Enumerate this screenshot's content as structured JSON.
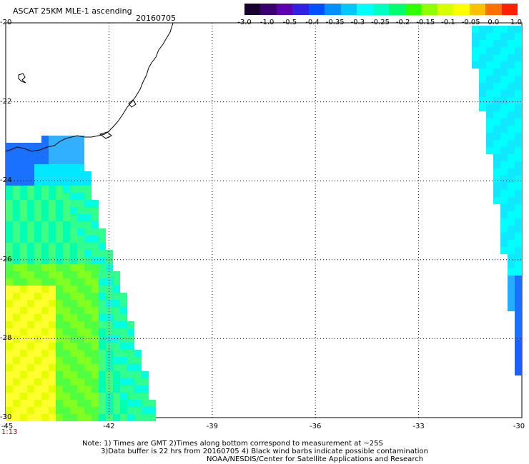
{
  "header": {
    "title": "ASCAT 25KM MLE-1 ascending",
    "date": "20160705"
  },
  "colorbar": {
    "colors": [
      "#1a0030",
      "#3a0070",
      "#5a00b0",
      "#3020e0",
      "#0050ff",
      "#0090ff",
      "#00c8ff",
      "#00ffff",
      "#00ffc0",
      "#00ff70",
      "#30ff00",
      "#90ff00",
      "#d8ff00",
      "#ffff00",
      "#ffc000",
      "#ff7000",
      "#ff2000"
    ],
    "labels": [
      "-3.0",
      "-1.0",
      "-0.5",
      "-0.4",
      "-0.35",
      "-0.3",
      "-0.25",
      "-0.2",
      "-0.15",
      "-0.1",
      "-0.05",
      "0.0",
      "1.0"
    ]
  },
  "axes": {
    "lat_labels": [
      "-20",
      "-22",
      "-24",
      "-26",
      "-28",
      "-30"
    ],
    "lon_labels": [
      "-45",
      "-42",
      "-39",
      "-36",
      "-33",
      "-30"
    ]
  },
  "time_label": "1:13",
  "notes": [
    "Note: 1) Times are GMT 2)Times along bottom correspond to measurement at ~25S",
    "3)Data buffer is 22 hrs from 20160705 4) Black wind barbs indicate possible contamination",
    "NOAA/NESDIS/Center for Satellite Applications and Research"
  ]
}
